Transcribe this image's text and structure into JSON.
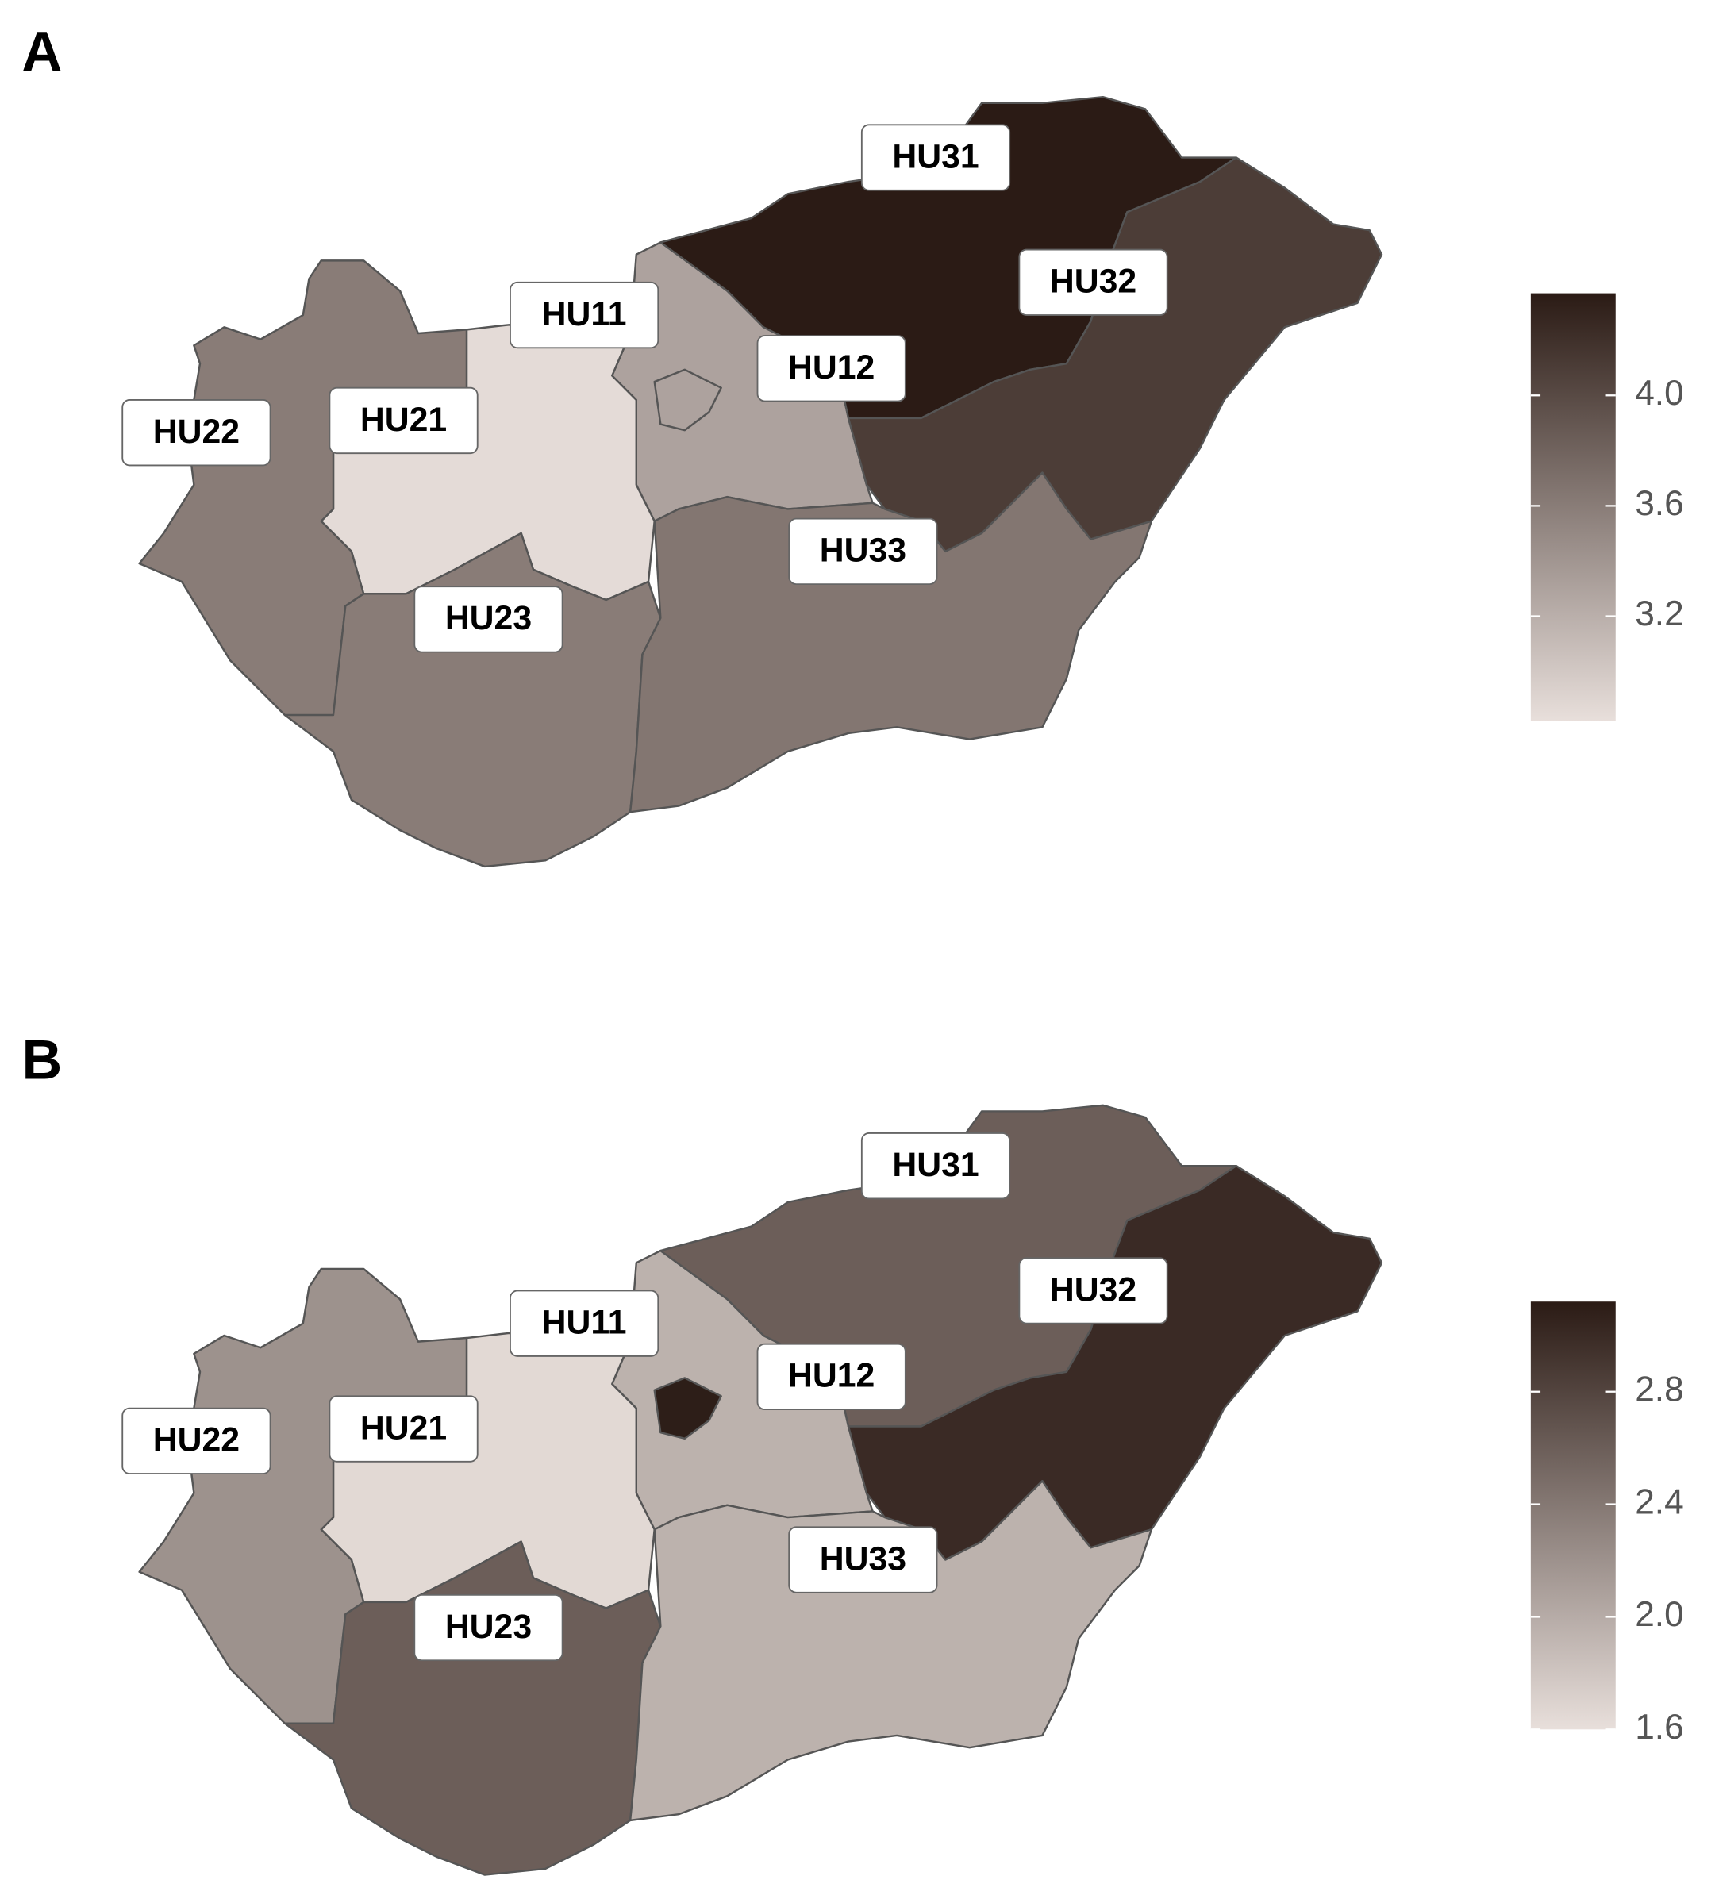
{
  "chart_data": [
    {
      "type": "choropleth",
      "panel_label": "A",
      "colors": [
        "#e8dfdb",
        "#2b1b15"
      ],
      "regions": [
        {
          "label": "HU11",
          "value": 3.3
        },
        {
          "label": "HU12",
          "value": 3.3
        },
        {
          "label": "HU21",
          "value": 2.85
        },
        {
          "label": "HU22",
          "value": 3.6
        },
        {
          "label": "HU23",
          "value": 3.6
        },
        {
          "label": "HU31",
          "value": 4.37
        },
        {
          "label": "HU32",
          "value": 4.1
        },
        {
          "label": "HU33",
          "value": 3.65
        }
      ],
      "clim": [
        2.82,
        4.37
      ],
      "cticks": [
        3.2,
        3.6,
        {
          "value": 4,
          "label": "4.0"
        }
      ]
    },
    {
      "type": "choropleth",
      "panel_label": "B",
      "colors": [
        "#e8dfdb",
        "#2b1b15"
      ],
      "regions": [
        {
          "label": "HU11",
          "value": 3.1
        },
        {
          "label": "HU12",
          "value": 1.95
        },
        {
          "label": "HU21",
          "value": 1.65
        },
        {
          "label": "HU22",
          "value": 2.2
        },
        {
          "label": "HU23",
          "value": 2.6
        },
        {
          "label": "HU31",
          "value": 2.6
        },
        {
          "label": "HU32",
          "value": 3.0
        },
        {
          "label": "HU33",
          "value": 1.95
        }
      ],
      "clim": [
        1.6,
        3.12
      ],
      "cticks": [
        1.6,
        {
          "value": 2,
          "label": "2.0"
        },
        2.4,
        2.8
      ]
    }
  ]
}
